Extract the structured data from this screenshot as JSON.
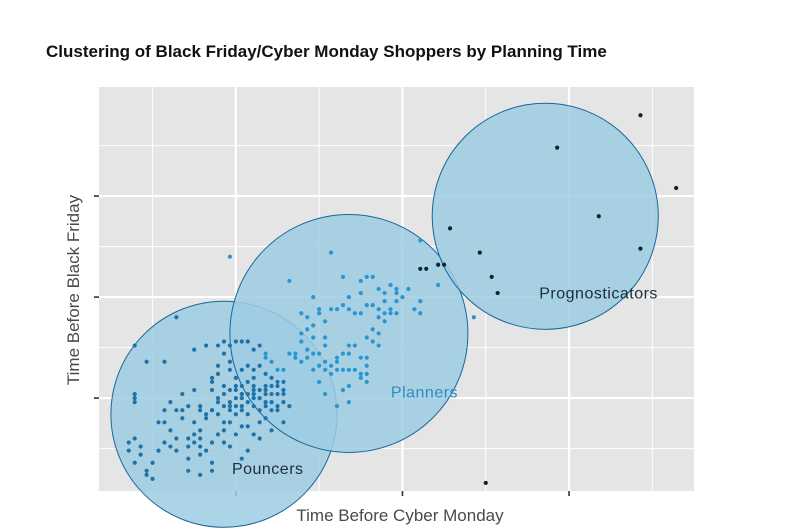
{
  "chart_data": {
    "type": "scatter",
    "title": "Clustering of Black Friday/Cyber Monday Shoppers by Planning Time",
    "xlabel": "Time Before Cyber Monday",
    "ylabel": "Time Before Black Friday",
    "xlim": [
      0,
      100
    ],
    "ylim": [
      0,
      100
    ],
    "x_ticks": [
      23,
      51,
      79
    ],
    "y_ticks": [
      23,
      48,
      73
    ],
    "grid": true,
    "colors": {
      "pouncers": "#1f72a8",
      "planners": "#2a95d0",
      "prognosticators": "#0d2431",
      "cluster_fill": "#9ecde3",
      "cluster_stroke": "#17679a",
      "planners_label": "#2a8cc8",
      "dark_label": "#1a2e3c",
      "panel_bg": "#e5e5e5",
      "grid": "#ffffff"
    },
    "series": [
      {
        "name": "Pouncers",
        "points": [
          [
            11,
            32
          ],
          [
            13,
            43
          ],
          [
            16,
            35
          ],
          [
            18,
            36
          ],
          [
            21,
            37
          ],
          [
            20,
            36
          ],
          [
            22,
            36
          ],
          [
            23,
            37
          ],
          [
            25,
            37
          ],
          [
            26,
            35
          ],
          [
            27,
            36
          ],
          [
            6,
            36
          ],
          [
            21,
            34
          ],
          [
            8,
            32
          ],
          [
            14,
            24
          ],
          [
            16,
            25
          ],
          [
            19,
            27
          ],
          [
            19,
            25
          ],
          [
            19,
            28
          ],
          [
            21,
            26
          ],
          [
            22,
            25
          ],
          [
            23,
            25
          ],
          [
            24,
            24
          ],
          [
            26,
            25
          ],
          [
            25,
            27
          ],
          [
            26,
            26
          ],
          [
            27,
            25
          ],
          [
            28,
            25
          ],
          [
            29,
            26
          ],
          [
            29,
            22
          ],
          [
            24,
            20
          ],
          [
            19,
            20
          ],
          [
            21,
            17
          ],
          [
            23,
            19
          ],
          [
            25,
            19
          ],
          [
            25,
            22
          ],
          [
            26,
            23
          ],
          [
            28,
            21
          ],
          [
            20,
            22
          ],
          [
            22,
            22
          ],
          [
            23,
            23
          ],
          [
            22,
            17
          ],
          [
            24,
            16
          ],
          [
            27,
            17
          ],
          [
            25,
            16
          ],
          [
            18,
            18
          ],
          [
            19,
            20
          ],
          [
            30,
            20
          ],
          [
            31,
            17
          ],
          [
            28,
            24
          ],
          [
            14,
            18
          ],
          [
            11,
            17
          ],
          [
            12,
            15
          ],
          [
            12,
            11
          ],
          [
            13,
            10
          ],
          [
            15,
            11
          ],
          [
            17,
            9
          ],
          [
            17,
            11
          ],
          [
            15,
            8
          ],
          [
            17,
            4
          ],
          [
            19,
            7
          ],
          [
            15,
            5
          ],
          [
            10,
            10
          ],
          [
            9,
            7
          ],
          [
            9,
            3
          ],
          [
            8,
            4
          ],
          [
            7,
            11
          ],
          [
            7,
            9
          ],
          [
            6,
            7
          ],
          [
            5,
            10
          ],
          [
            5,
            12
          ],
          [
            6,
            13
          ],
          [
            6,
            22
          ],
          [
            6,
            23
          ],
          [
            6,
            24
          ],
          [
            10,
            17
          ],
          [
            15,
            13
          ],
          [
            16,
            14
          ],
          [
            20,
            14
          ],
          [
            21,
            15
          ],
          [
            22,
            11
          ],
          [
            25,
            10
          ],
          [
            24,
            8
          ],
          [
            19,
            12
          ],
          [
            18,
            10
          ],
          [
            17,
            13
          ],
          [
            19,
            5
          ],
          [
            22,
            20
          ],
          [
            24,
            21
          ],
          [
            26,
            21
          ],
          [
            28,
            22
          ],
          [
            27,
            20
          ],
          [
            29,
            20
          ],
          [
            21,
            24
          ],
          [
            20,
            29
          ],
          [
            20,
            31
          ],
          [
            22,
            32
          ],
          [
            23,
            28
          ],
          [
            24,
            26
          ],
          [
            26,
            28
          ],
          [
            28,
            29
          ],
          [
            25,
            31
          ],
          [
            24,
            30
          ],
          [
            24,
            37
          ],
          [
            22,
            30
          ],
          [
            26,
            30
          ],
          [
            27,
            31
          ],
          [
            28,
            26
          ],
          [
            29,
            28
          ],
          [
            30,
            27
          ],
          [
            31,
            27
          ],
          [
            31,
            24
          ],
          [
            30,
            21
          ],
          [
            31,
            22
          ],
          [
            32,
            21
          ],
          [
            28,
            18
          ],
          [
            29,
            15
          ],
          [
            27,
            13
          ],
          [
            26,
            14
          ],
          [
            23,
            14
          ],
          [
            21,
            12
          ],
          [
            16,
            17
          ],
          [
            18,
            19
          ],
          [
            17,
            21
          ],
          [
            15,
            21
          ],
          [
            13,
            20
          ],
          [
            12,
            22
          ],
          [
            14,
            20
          ],
          [
            11,
            20
          ],
          [
            20,
            19
          ],
          [
            21,
            21
          ],
          [
            22,
            21
          ],
          [
            23,
            21
          ],
          [
            24,
            23
          ],
          [
            25,
            24
          ],
          [
            27,
            23
          ],
          [
            26,
            24
          ],
          [
            24,
            24
          ],
          [
            23,
            26
          ],
          [
            29,
            24
          ],
          [
            30,
            24
          ],
          [
            31,
            25
          ],
          [
            30,
            26
          ],
          [
            17,
            20
          ],
          [
            20,
            23
          ],
          [
            17,
            15
          ],
          [
            13,
            13
          ],
          [
            16,
            12
          ],
          [
            11,
            12
          ],
          [
            8,
            5
          ]
        ]
      },
      {
        "name": "Planners",
        "points": [
          [
            22,
            58
          ],
          [
            32,
            34
          ],
          [
            33,
            34
          ],
          [
            33,
            33
          ],
          [
            34,
            32
          ],
          [
            35,
            33
          ],
          [
            35,
            35
          ],
          [
            36,
            34
          ],
          [
            37,
            34
          ],
          [
            37,
            31
          ],
          [
            38,
            30
          ],
          [
            38,
            32
          ],
          [
            39,
            31
          ],
          [
            40,
            32
          ],
          [
            40,
            33
          ],
          [
            41,
            34
          ],
          [
            42,
            34
          ],
          [
            42,
            36
          ],
          [
            43,
            36
          ],
          [
            44,
            33
          ],
          [
            45,
            33
          ],
          [
            45,
            31
          ],
          [
            45,
            29
          ],
          [
            44,
            29
          ],
          [
            44,
            28
          ],
          [
            43,
            30
          ],
          [
            42,
            30
          ],
          [
            41,
            30
          ],
          [
            40,
            30
          ],
          [
            39,
            29
          ],
          [
            38,
            36
          ],
          [
            38,
            38
          ],
          [
            36,
            38
          ],
          [
            34,
            37
          ],
          [
            34,
            39
          ],
          [
            35,
            40
          ],
          [
            36,
            41
          ],
          [
            35,
            43
          ],
          [
            34,
            44
          ],
          [
            38,
            42
          ],
          [
            39,
            45
          ],
          [
            40,
            45
          ],
          [
            41,
            46
          ],
          [
            42,
            45
          ],
          [
            43,
            44
          ],
          [
            44,
            44
          ],
          [
            47,
            43
          ],
          [
            48,
            44
          ],
          [
            49,
            44
          ],
          [
            50,
            44
          ],
          [
            50,
            47
          ],
          [
            50,
            49
          ],
          [
            51,
            48
          ],
          [
            50,
            50
          ],
          [
            49,
            51
          ],
          [
            52,
            50
          ],
          [
            54,
            47
          ],
          [
            54,
            44
          ],
          [
            53,
            45
          ],
          [
            48,
            47
          ],
          [
            48,
            49
          ],
          [
            47,
            50
          ],
          [
            46,
            53
          ],
          [
            45,
            53
          ],
          [
            44,
            52
          ],
          [
            41,
            53
          ],
          [
            36,
            48
          ],
          [
            32,
            52
          ],
          [
            37,
            44
          ],
          [
            37,
            45
          ],
          [
            42,
            48
          ],
          [
            44,
            49
          ],
          [
            46,
            46
          ],
          [
            45,
            46
          ],
          [
            47,
            45
          ],
          [
            48,
            42
          ],
          [
            47,
            39
          ],
          [
            46,
            40
          ],
          [
            45,
            38
          ],
          [
            46,
            37
          ],
          [
            47,
            36
          ],
          [
            45,
            27
          ],
          [
            41,
            25
          ],
          [
            40,
            21
          ],
          [
            42,
            22
          ],
          [
            38,
            24
          ],
          [
            36,
            30
          ],
          [
            37,
            27
          ],
          [
            31,
            30
          ],
          [
            30,
            30
          ],
          [
            29,
            32
          ],
          [
            28,
            34
          ],
          [
            28,
            33
          ],
          [
            54,
            62
          ],
          [
            57,
            51
          ],
          [
            63,
            43
          ],
          [
            39,
            59
          ],
          [
            42,
            26
          ],
          [
            49,
            45
          ]
        ]
      },
      {
        "name": "Prognosticators",
        "points": [
          [
            59,
            65
          ],
          [
            58,
            56
          ],
          [
            57,
            56
          ],
          [
            55,
            55
          ],
          [
            54,
            55
          ],
          [
            64,
            59
          ],
          [
            66,
            53
          ],
          [
            67,
            49
          ],
          [
            77,
            85
          ],
          [
            84,
            68
          ],
          [
            91,
            60
          ],
          [
            97,
            75
          ],
          [
            91,
            93
          ],
          [
            65,
            2
          ]
        ]
      }
    ],
    "clusters": [
      {
        "name": "Pouncers",
        "cx": 21,
        "cy": 19,
        "r": 19,
        "label": "Pouncers"
      },
      {
        "name": "Planners",
        "cx": 42,
        "cy": 39,
        "r": 20,
        "label": "Planners"
      },
      {
        "name": "Prognosticators",
        "cx": 75,
        "cy": 68,
        "r": 19,
        "label": "Prognosticators"
      }
    ]
  }
}
